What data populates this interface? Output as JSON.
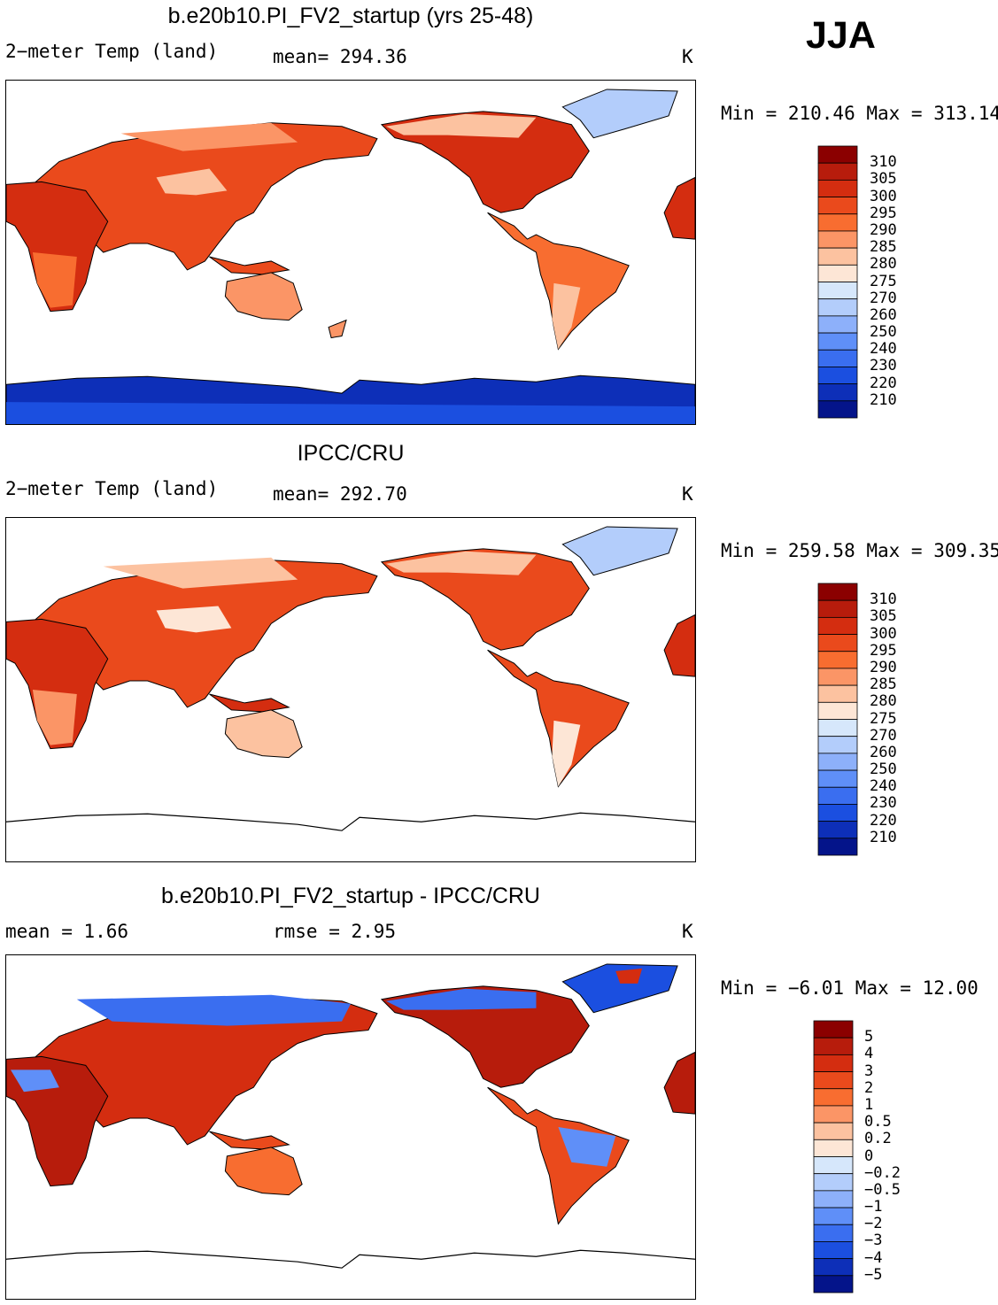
{
  "season": "JJA",
  "panels": [
    {
      "title": "b.e20b10.PI_FV2_startup (yrs 25-48)",
      "left_label": "2−meter Temp (land)",
      "center_label": "mean= 294.36",
      "units": "K",
      "range_label": "Min = 210.46 Max = 313.14",
      "colorbar": {
        "labels": [
          "310",
          "305",
          "300",
          "295",
          "290",
          "285",
          "280",
          "275",
          "270",
          "260",
          "250",
          "240",
          "230",
          "220",
          "210"
        ],
        "colors": [
          "#8b0000",
          "#b71c0c",
          "#d42d10",
          "#ea4a1c",
          "#f86d30",
          "#fb9566",
          "#fcc2a0",
          "#fde6d6",
          "#d6e7fb",
          "#b3cdfb",
          "#8db0fa",
          "#5f8ff8",
          "#3a6ef0",
          "#1b4fe0",
          "#0d2fb8",
          "#04148a"
        ]
      }
    },
    {
      "title": "IPCC/CRU",
      "left_label": "2−meter Temp (land)",
      "center_label": "mean= 292.70",
      "units": "K",
      "range_label": "Min = 259.58 Max = 309.35",
      "colorbar": {
        "labels": [
          "310",
          "305",
          "300",
          "295",
          "290",
          "285",
          "280",
          "275",
          "270",
          "260",
          "250",
          "240",
          "230",
          "220",
          "210"
        ],
        "colors": [
          "#8b0000",
          "#b71c0c",
          "#d42d10",
          "#ea4a1c",
          "#f86d30",
          "#fb9566",
          "#fcc2a0",
          "#fde6d6",
          "#d6e7fb",
          "#b3cdfb",
          "#8db0fa",
          "#5f8ff8",
          "#3a6ef0",
          "#1b4fe0",
          "#0d2fb8",
          "#04148a"
        ]
      }
    },
    {
      "title": "b.e20b10.PI_FV2_startup - IPCC/CRU",
      "left_label": "mean =    1.66",
      "center_label": "rmse =    2.95",
      "units": "K",
      "range_label": "Min =  −6.01 Max =   12.00",
      "colorbar": {
        "labels": [
          "5",
          "4",
          "3",
          "2",
          "1",
          "0.5",
          "0.2",
          "0",
          "−0.2",
          "−0.5",
          "−1",
          "−2",
          "−3",
          "−4",
          "−5"
        ],
        "colors": [
          "#8b0000",
          "#b71c0c",
          "#d42d10",
          "#ea4a1c",
          "#f86d30",
          "#fb9566",
          "#fcc2a0",
          "#fde6d6",
          "#d6e7fb",
          "#b3cdfb",
          "#8db0fa",
          "#5f8ff8",
          "#3a6ef0",
          "#1b4fe0",
          "#0d2fb8",
          "#04148a"
        ]
      }
    }
  ]
}
